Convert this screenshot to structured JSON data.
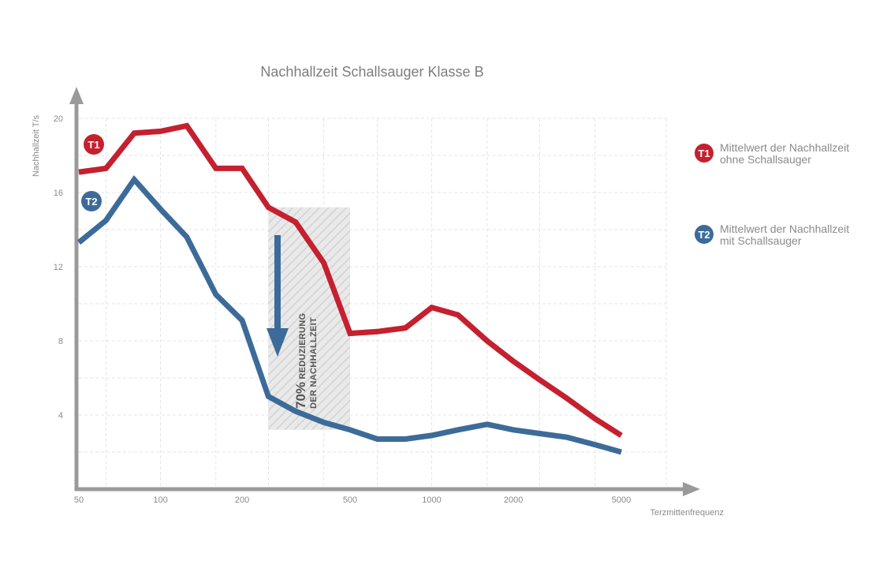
{
  "chart_data": {
    "type": "line",
    "title": "Nachhallzeit Schallsauger Klasse B",
    "xlabel": "Terzmittenfrequenz",
    "ylabel": "Nachhallzeit T/s",
    "x_scale": "log",
    "x_ticks": [
      "50",
      "100",
      "200",
      "500",
      "1000",
      "2000",
      "5000"
    ],
    "y_ticks": [
      "20",
      "16",
      "12",
      "8",
      "4"
    ],
    "ylim": [
      0,
      20
    ],
    "grid": true,
    "legend_position": "right",
    "series": [
      {
        "name": "T1",
        "legend_line1": "Mittelwert der Nachhallzeit",
        "legend_line2": "ohne Schallsauger",
        "color": "#c5202f",
        "x": [
          50,
          63,
          80,
          100,
          125,
          160,
          200,
          250,
          315,
          400,
          500,
          630,
          800,
          1000,
          1250,
          1600,
          2000,
          2500,
          3150,
          4000,
          5000
        ],
        "y": [
          17.1,
          17.3,
          19.2,
          19.3,
          19.6,
          17.3,
          17.3,
          15.2,
          14.4,
          12.2,
          8.4,
          8.5,
          8.7,
          9.8,
          9.4,
          8.0,
          6.9,
          5.9,
          4.9,
          3.8,
          2.9
        ]
      },
      {
        "name": "T2",
        "legend_line1": "Mittelwert der Nachhallzeit",
        "legend_line2": "mit Schallsauger",
        "color": "#3d6b99",
        "x": [
          50,
          63,
          80,
          100,
          125,
          160,
          200,
          250,
          315,
          400,
          500,
          630,
          800,
          1000,
          1250,
          1600,
          2000,
          2500,
          3150,
          4000,
          5000
        ],
        "y": [
          13.3,
          14.5,
          16.7,
          15.1,
          13.6,
          10.5,
          9.1,
          5.0,
          4.2,
          3.6,
          3.2,
          2.7,
          2.7,
          2.9,
          3.2,
          3.5,
          3.2,
          3.0,
          2.8,
          2.4,
          2.0
        ]
      }
    ],
    "annotation": {
      "line1": "70%",
      "line1_rest": " REDUZIERUNG",
      "line2": "DER NACHHALLZEIT",
      "x_range": [
        250,
        500
      ]
    }
  }
}
